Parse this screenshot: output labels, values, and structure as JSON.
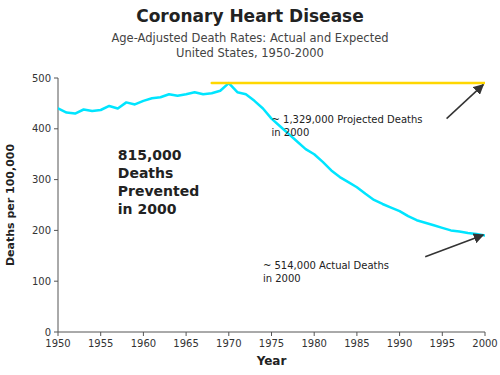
{
  "chart_data": {
    "type": "line",
    "title": "Coronary Heart Disease",
    "subtitle": [
      "Age-Adjusted Death Rates: Actual and Expected",
      "United States, 1950-2000"
    ],
    "x_label": "Year",
    "y_label": "Deaths per 100,000",
    "xlim": [
      1950,
      2000
    ],
    "ylim": [
      0,
      500
    ],
    "xticks": [
      1950,
      1955,
      1960,
      1965,
      1970,
      1975,
      1980,
      1985,
      1990,
      1995,
      2000
    ],
    "yticks": [
      0,
      100,
      200,
      300,
      400,
      500
    ],
    "grid": false,
    "series": [
      {
        "color": "#00E5FF",
        "x": [
          1950,
          1951,
          1952,
          1953,
          1954,
          1955,
          1956,
          1957,
          1958,
          1959,
          1960,
          1961,
          1962,
          1963,
          1964,
          1965,
          1966,
          1967,
          1968,
          1969,
          1970,
          1971,
          1972,
          1973,
          1974,
          1975,
          1976,
          1977,
          1978,
          1979,
          1980,
          1981,
          1982,
          1983,
          1984,
          1985,
          1986,
          1987,
          1988,
          1989,
          1990,
          1991,
          1992,
          1993,
          1994,
          1995,
          1996,
          1997,
          1998,
          1999,
          2000
        ],
        "values": [
          440,
          432,
          430,
          438,
          435,
          437,
          445,
          440,
          452,
          448,
          455,
          460,
          462,
          468,
          465,
          468,
          472,
          468,
          470,
          475,
          490,
          472,
          468,
          455,
          440,
          420,
          405,
          390,
          375,
          360,
          350,
          335,
          318,
          305,
          295,
          285,
          272,
          260,
          252,
          245,
          238,
          228,
          220,
          215,
          210,
          205,
          200,
          198,
          195,
          193,
          190
        ]
      },
      {
        "color": "#FFD700",
        "x": [
          1968,
          2000
        ],
        "values": [
          490,
          490
        ]
      }
    ],
    "annotations": [
      {
        "text": "815,000\nDeaths\nPrevented\nin 2000",
        "x": 1957,
        "y": 295
      },
      {
        "text": "~ 1,329,000 Projected Deaths\nin 2000",
        "x": 1975,
        "y": 405
      },
      {
        "text": "~ 514,000 Actual Deaths\nin 2000",
        "x": 1974,
        "y": 118
      }
    ],
    "arrows": [
      {
        "x": [
          1995.5,
          1999.8
        ],
        "y": [
          420,
          487
        ]
      },
      {
        "x": [
          1993,
          1999.8
        ],
        "y": [
          148,
          191
        ]
      }
    ]
  }
}
